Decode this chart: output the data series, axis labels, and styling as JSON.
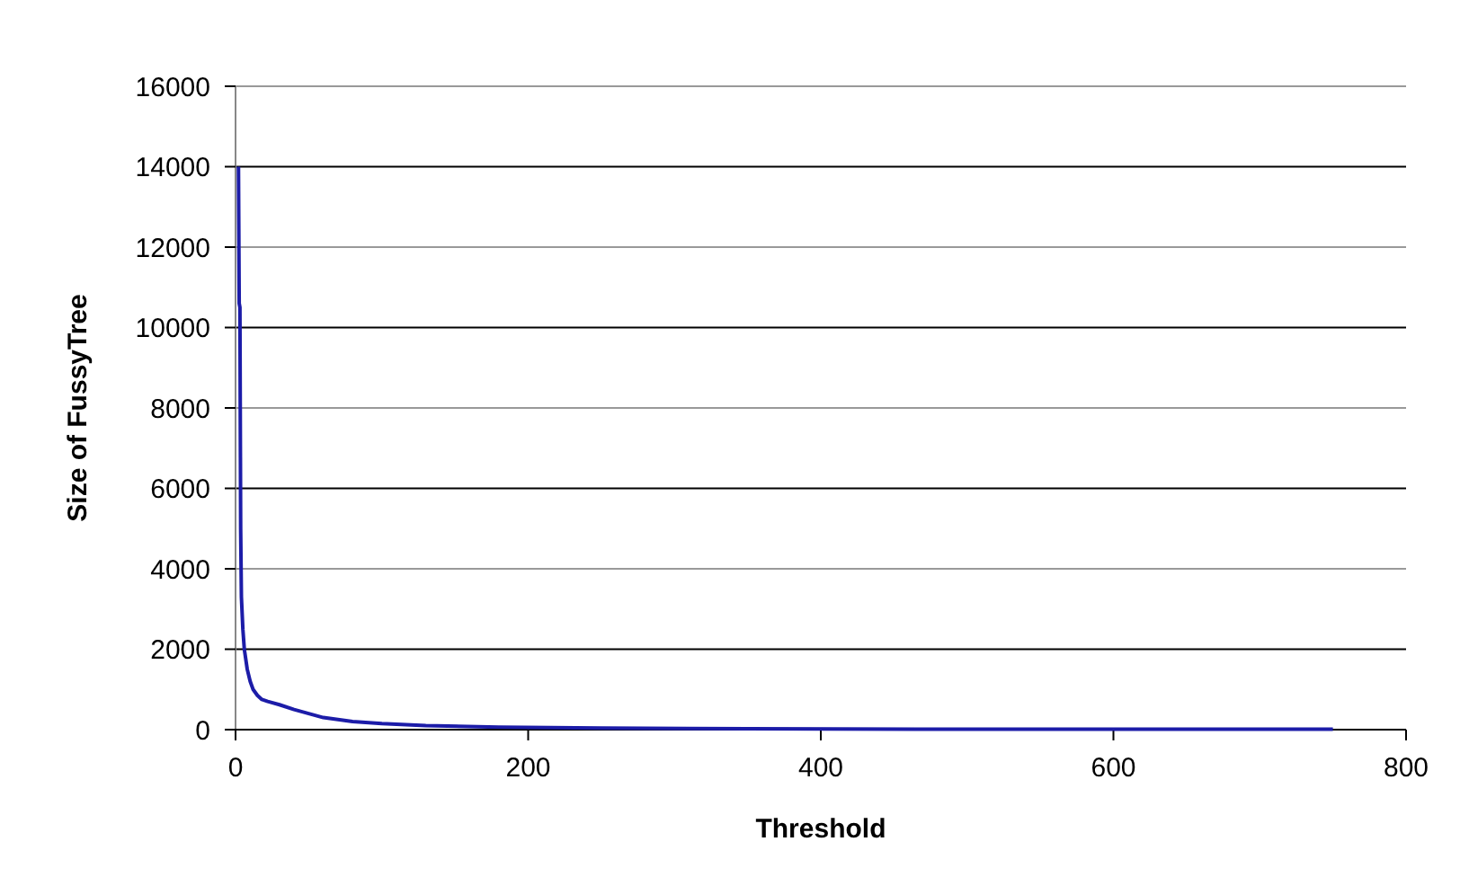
{
  "chart_data": {
    "type": "line",
    "xlabel": "Threshold",
    "ylabel": "Size of FussyTree",
    "x": [
      2,
      2.5,
      3,
      3.5,
      4,
      5,
      6,
      8,
      10,
      12,
      15,
      18,
      22,
      30,
      40,
      50,
      60,
      80,
      100,
      130,
      180,
      250,
      350,
      500,
      750
    ],
    "series": [
      {
        "color": "#1c1ca8",
        "values": [
          14000,
          10600,
          10500,
          5000,
          3300,
          2500,
          2000,
          1500,
          1200,
          1000,
          850,
          750,
          700,
          620,
          500,
          400,
          300,
          200,
          150,
          100,
          60,
          40,
          20,
          10,
          10
        ]
      }
    ],
    "xlim": [
      0,
      800
    ],
    "xticks": [
      0,
      200,
      400,
      600,
      800
    ],
    "ylim": [
      0,
      16000
    ],
    "yticks": [
      0,
      2000,
      4000,
      6000,
      8000,
      10000,
      12000,
      14000,
      16000
    ],
    "grid": "y",
    "marker": "none",
    "line_style": "solid"
  }
}
